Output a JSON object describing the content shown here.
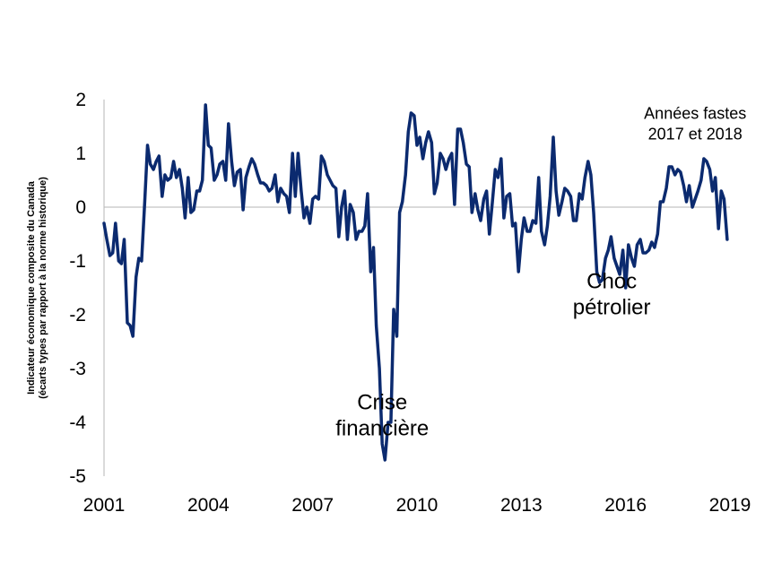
{
  "chart_data": {
    "type": "line",
    "title": "",
    "ylabel_lines": [
      "Indicateur économique composite du Canada",
      "(écarts types par rapport à la norme historique)"
    ],
    "xlabel": "",
    "xlim": [
      2001,
      2019
    ],
    "ylim": [
      -5,
      2
    ],
    "x_ticks": [
      2001,
      2004,
      2007,
      2010,
      2013,
      2016,
      2019
    ],
    "x_tick_labels": [
      "2001",
      "2004",
      "2007",
      "2010",
      "2013",
      "2016",
      "2019"
    ],
    "y_ticks": [
      -5,
      -4,
      -3,
      -2,
      -1,
      0,
      1,
      2
    ],
    "y_tick_labels": [
      "-5",
      "-4",
      "-3",
      "-2",
      "-1",
      "0",
      "1",
      "2"
    ],
    "grid": false,
    "zero_line": true,
    "line_color": "#0b2a6f",
    "series": [
      {
        "name": "",
        "x": [
          2001.0,
          2001.08,
          2001.17,
          2001.25,
          2001.33,
          2001.42,
          2001.5,
          2001.58,
          2001.67,
          2001.75,
          2001.83,
          2001.92,
          2002.0,
          2002.08,
          2002.17,
          2002.25,
          2002.33,
          2002.42,
          2002.5,
          2002.58,
          2002.67,
          2002.75,
          2002.83,
          2002.92,
          2003.0,
          2003.08,
          2003.17,
          2003.25,
          2003.33,
          2003.42,
          2003.5,
          2003.58,
          2003.67,
          2003.75,
          2003.83,
          2003.92,
          2004.0,
          2004.08,
          2004.17,
          2004.25,
          2004.33,
          2004.42,
          2004.5,
          2004.58,
          2004.67,
          2004.75,
          2004.83,
          2004.92,
          2005.0,
          2005.08,
          2005.17,
          2005.25,
          2005.33,
          2005.42,
          2005.5,
          2005.58,
          2005.67,
          2005.75,
          2005.83,
          2005.92,
          2006.0,
          2006.08,
          2006.17,
          2006.25,
          2006.33,
          2006.42,
          2006.5,
          2006.58,
          2006.67,
          2006.75,
          2006.83,
          2006.92,
          2007.0,
          2007.08,
          2007.17,
          2007.25,
          2007.33,
          2007.42,
          2007.5,
          2007.58,
          2007.67,
          2007.75,
          2007.83,
          2007.92,
          2008.0,
          2008.08,
          2008.17,
          2008.25,
          2008.33,
          2008.42,
          2008.5,
          2008.58,
          2008.67,
          2008.75,
          2008.83,
          2008.92,
          2009.0,
          2009.08,
          2009.17,
          2009.25,
          2009.33,
          2009.42,
          2009.5,
          2009.58,
          2009.67,
          2009.75,
          2009.83,
          2009.92,
          2010.0,
          2010.08,
          2010.17,
          2010.25,
          2010.33,
          2010.42,
          2010.5,
          2010.58,
          2010.67,
          2010.75,
          2010.83,
          2010.92,
          2011.0,
          2011.08,
          2011.17,
          2011.25,
          2011.33,
          2011.42,
          2011.5,
          2011.58,
          2011.67,
          2011.75,
          2011.83,
          2011.92,
          2012.0,
          2012.08,
          2012.17,
          2012.25,
          2012.33,
          2012.42,
          2012.5,
          2012.58,
          2012.67,
          2012.75,
          2012.83,
          2012.92,
          2013.0,
          2013.08,
          2013.17,
          2013.25,
          2013.33,
          2013.42,
          2013.5,
          2013.58,
          2013.67,
          2013.75,
          2013.83,
          2013.92,
          2014.0,
          2014.08,
          2014.17,
          2014.25,
          2014.33,
          2014.42,
          2014.5,
          2014.58,
          2014.67,
          2014.75,
          2014.83,
          2014.92,
          2015.0,
          2015.08,
          2015.17,
          2015.25,
          2015.33,
          2015.42,
          2015.5,
          2015.58,
          2015.67,
          2015.75,
          2015.83,
          2015.92,
          2016.0,
          2016.08,
          2016.17,
          2016.25,
          2016.33,
          2016.42,
          2016.5,
          2016.58,
          2016.67,
          2016.75,
          2016.83,
          2016.92,
          2017.0,
          2017.08,
          2017.17,
          2017.25,
          2017.33,
          2017.42,
          2017.5,
          2017.58,
          2017.67,
          2017.75,
          2017.83,
          2017.92,
          2018.0,
          2018.08,
          2018.17,
          2018.25,
          2018.33,
          2018.42,
          2018.5,
          2018.58,
          2018.67,
          2018.75,
          2018.83,
          2018.92
        ],
        "values": [
          -0.3,
          -0.6,
          -0.9,
          -0.85,
          -0.3,
          -1.0,
          -1.05,
          -0.6,
          -2.15,
          -2.2,
          -2.4,
          -1.3,
          -0.95,
          -1.0,
          0.1,
          1.15,
          0.8,
          0.7,
          0.85,
          0.95,
          0.2,
          0.6,
          0.5,
          0.55,
          0.85,
          0.55,
          0.7,
          0.35,
          -0.2,
          0.55,
          -0.1,
          -0.05,
          0.3,
          0.3,
          0.5,
          1.9,
          1.15,
          1.1,
          0.5,
          0.6,
          0.8,
          0.85,
          0.5,
          1.55,
          0.85,
          0.4,
          0.65,
          0.7,
          -0.05,
          0.55,
          0.75,
          0.9,
          0.8,
          0.6,
          0.45,
          0.45,
          0.4,
          0.3,
          0.35,
          0.6,
          0.1,
          0.35,
          0.25,
          0.2,
          -0.1,
          1.0,
          0.2,
          1.0,
          0.3,
          -0.2,
          0.0,
          -0.3,
          0.15,
          0.2,
          0.15,
          0.95,
          0.85,
          0.6,
          0.5,
          0.4,
          0.35,
          -0.55,
          0.0,
          0.3,
          -0.6,
          0.05,
          -0.1,
          -0.6,
          -0.45,
          -0.45,
          -0.35,
          0.25,
          -1.2,
          -0.75,
          -2.2,
          -3.0,
          -4.4,
          -4.7,
          -4.0,
          -4.0,
          -1.9,
          -2.4,
          -0.1,
          0.1,
          0.6,
          1.4,
          1.75,
          1.7,
          1.15,
          1.3,
          0.9,
          1.2,
          1.4,
          1.2,
          0.25,
          0.45,
          1.0,
          0.9,
          0.7,
          0.9,
          1.0,
          0.05,
          1.45,
          1.45,
          1.2,
          0.8,
          0.75,
          -0.1,
          0.25,
          -0.05,
          -0.25,
          0.15,
          0.3,
          -0.5,
          0.1,
          0.7,
          0.55,
          0.9,
          -0.2,
          0.2,
          0.25,
          -0.35,
          -0.3,
          -1.2,
          -0.6,
          -0.2,
          -0.45,
          -0.45,
          -0.25,
          -0.3,
          0.55,
          -0.45,
          -0.7,
          -0.35,
          0.2,
          1.3,
          0.3,
          -0.15,
          0.1,
          0.35,
          0.3,
          0.2,
          -0.25,
          -0.25,
          0.25,
          0.15,
          0.55,
          0.85,
          0.6,
          -0.1,
          -1.2,
          -1.4,
          -1.35,
          -0.95,
          -0.8,
          -0.55,
          -0.95,
          -1.1,
          -1.25,
          -0.8,
          -1.5,
          -0.7,
          -0.95,
          -1.1,
          -0.7,
          -0.6,
          -0.85,
          -0.85,
          -0.8,
          -0.65,
          -0.75,
          -0.5,
          0.1,
          0.1,
          0.35,
          0.75,
          0.75,
          0.6,
          0.7,
          0.65,
          0.4,
          0.1,
          0.4,
          0.0,
          0.15,
          0.3,
          0.5,
          0.9,
          0.85,
          0.7,
          0.3,
          0.55,
          -0.4,
          0.3,
          0.15,
          -0.6
        ]
      }
    ],
    "annotations": [
      {
        "lines": [
          "Crise",
          "financière"
        ],
        "near_x": 2009.0,
        "near_y": -4.0,
        "size": "large"
      },
      {
        "lines": [
          "Choc",
          "pétrolier"
        ],
        "near_x": 2015.6,
        "near_y": -1.75,
        "size": "large"
      },
      {
        "lines": [
          "Années fastes",
          "2017 et 2018"
        ],
        "near_x": 2018.0,
        "near_y": 1.45,
        "size": "small"
      }
    ]
  }
}
